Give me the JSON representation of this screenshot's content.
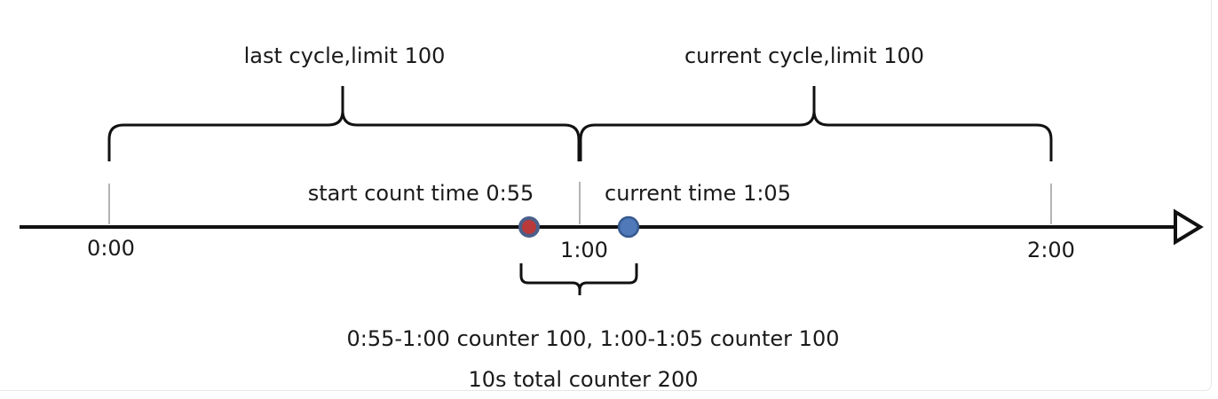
{
  "labels": {
    "last_cycle": "last cycle,limit 100",
    "current_cycle": "current cycle,limit 100",
    "start_count": "start count time 0:55",
    "current_time": "current time 1:05",
    "note_line1": "0:55-1:00 counter 100, 1:00-1:05 counter 100",
    "note_line2": "10s total counter 200"
  },
  "ticks": [
    "0:00",
    "1:00",
    "2:00"
  ],
  "colors": {
    "line": "#111111",
    "tick": "#9a9a9a",
    "start_marker_fill": "#b83a3a",
    "start_marker_stroke": "#4a5f8a",
    "current_marker_fill": "#4f79b8",
    "current_marker_stroke": "#36598f"
  }
}
